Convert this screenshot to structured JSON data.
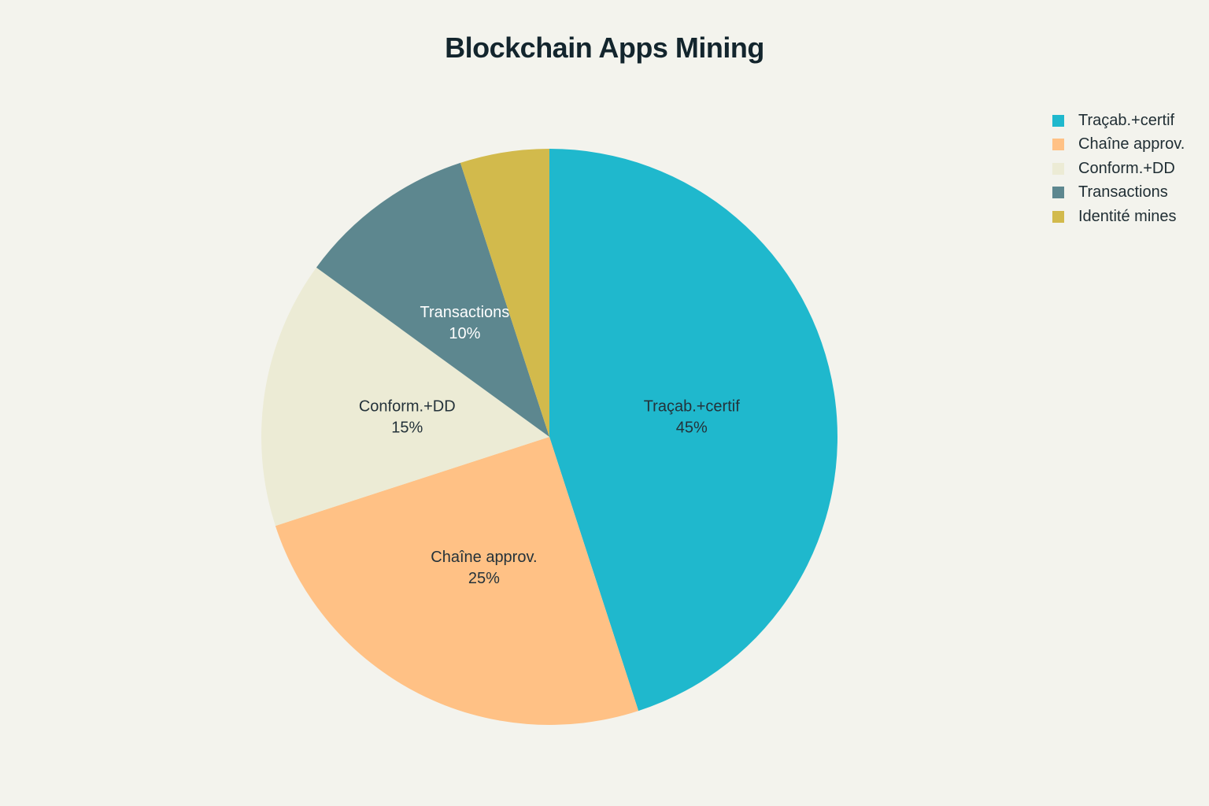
{
  "chart_data": {
    "type": "pie",
    "title": "Blockchain Apps Mining",
    "legend_position": "top-right",
    "slices": [
      {
        "label": "Traçab.+certif",
        "value": 45,
        "value_label": "45%",
        "color": "#1fb8cd",
        "text_color": "#24323a"
      },
      {
        "label": "Chaîne approv.",
        "value": 25,
        "value_label": "25%",
        "color": "#ffc185",
        "text_color": "#24323a"
      },
      {
        "label": "Conform.+DD",
        "value": 15,
        "value_label": "15%",
        "color": "#eceBd5",
        "text_color": "#24323a"
      },
      {
        "label": "Transactions",
        "value": 10,
        "value_label": "10%",
        "color": "#5d878f",
        "text_color": "#ffffff"
      },
      {
        "label": "Identité mines",
        "value": 5,
        "value_label": "",
        "color": "#d2ba4c",
        "text_color": "#24323a"
      }
    ],
    "legend": [
      {
        "label": "Traçab.+certif",
        "color": "#1fb8cd"
      },
      {
        "label": "Chaîne approv.",
        "color": "#ffc185"
      },
      {
        "label": "Conform.+DD",
        "color": "#eceBd5"
      },
      {
        "label": "Transactions",
        "color": "#5d878f"
      },
      {
        "label": "Identité mines",
        "color": "#d2ba4c"
      }
    ]
  }
}
